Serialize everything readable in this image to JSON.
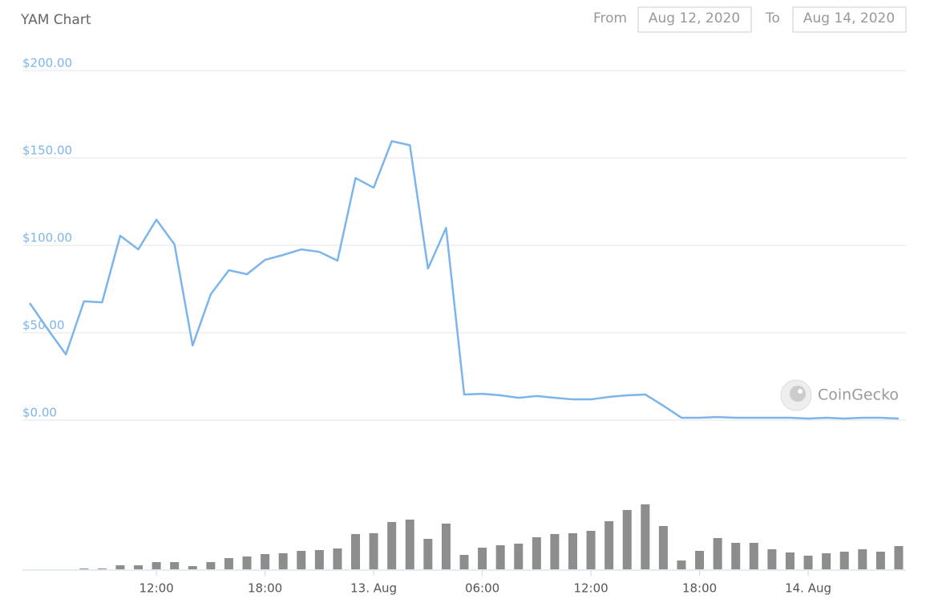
{
  "chart_data": {
    "type": "line",
    "title": "YAM Chart",
    "from_label": "From",
    "from_value": "Aug 12, 2020",
    "to_label": "To",
    "to_value": "Aug 14, 2020",
    "watermark": "CoinGecko",
    "x": [
      5,
      6,
      7,
      8,
      9,
      10,
      11,
      12,
      13,
      14,
      15,
      16,
      17,
      18,
      19,
      20,
      21,
      22,
      23,
      24,
      25,
      26,
      27,
      28,
      29,
      30,
      31,
      32,
      33,
      34,
      35,
      36,
      37,
      38,
      39,
      40,
      41,
      42,
      43,
      44,
      45,
      46,
      47,
      48,
      49,
      50,
      51,
      52,
      53
    ],
    "xlim": [
      4.6,
      53.4
    ],
    "xticks": [
      {
        "value": 12,
        "label": "12:00"
      },
      {
        "value": 18,
        "label": "18:00"
      },
      {
        "value": 24,
        "label": "13. Aug"
      },
      {
        "value": 30,
        "label": "06:00"
      },
      {
        "value": 36,
        "label": "12:00"
      },
      {
        "value": 42,
        "label": "18:00"
      },
      {
        "value": 48,
        "label": "14. Aug"
      }
    ],
    "ylim": [
      0,
      200
    ],
    "yticks": [
      {
        "value": 0,
        "label": "$0.00"
      },
      {
        "value": 50,
        "label": "$50.00"
      },
      {
        "value": 100,
        "label": "$100.00"
      },
      {
        "value": 150,
        "label": "$150.00"
      },
      {
        "value": 200,
        "label": "$200.00"
      }
    ],
    "grid": true,
    "series": [
      {
        "type": "line",
        "color": "#7cb5ec",
        "values": [
          67,
          52,
          37.6,
          68,
          67.4,
          105.5,
          97.7,
          114.7,
          100.5,
          42.7,
          72,
          85.8,
          83.5,
          91.7,
          94.5,
          97.7,
          96.3,
          91.3,
          138.5,
          133,
          159.6,
          157.3,
          86.7,
          110,
          14.7,
          15.1,
          14.2,
          12.8,
          13.8,
          12.8,
          11.9,
          11.9,
          13.3,
          14.2,
          14.7,
          8.3,
          1.4,
          1.4,
          1.8,
          1.4,
          1.4,
          1.4,
          1.4,
          0.9,
          1.4,
          0.9,
          1.4,
          1.4,
          0.9
        ]
      },
      {
        "type": "bar",
        "color": "#8d8d8d",
        "values": [
          null,
          null,
          null,
          1,
          1,
          5,
          5,
          9,
          9,
          4,
          9,
          14,
          16,
          19,
          20,
          23,
          24,
          26,
          44,
          45,
          59,
          62,
          38,
          57,
          18,
          27,
          30,
          32,
          40,
          44,
          45,
          48,
          60,
          74,
          81,
          54,
          11,
          23,
          39,
          33,
          33,
          25,
          21,
          17,
          20,
          22,
          25,
          22,
          29
        ]
      }
    ]
  }
}
